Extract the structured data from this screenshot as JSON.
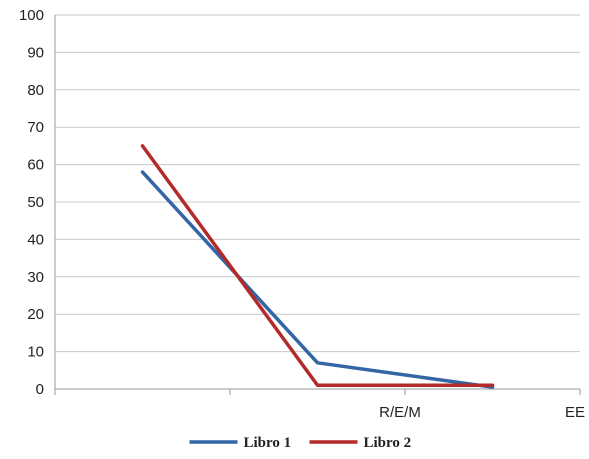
{
  "chart_data": {
    "type": "line",
    "categories": [
      "",
      "R/E/M",
      "EE"
    ],
    "ylim": [
      0,
      100
    ],
    "yticks": [
      0,
      10,
      20,
      30,
      40,
      50,
      60,
      70,
      80,
      90,
      100
    ],
    "grid": true,
    "legend_position": "bottom",
    "series": [
      {
        "name": "Libro 1",
        "color": "#3465a4",
        "values": [
          58,
          7,
          0.5
        ]
      },
      {
        "name": "Libro 2",
        "color": "#b22a2a",
        "values": [
          65,
          1,
          1
        ]
      }
    ]
  }
}
